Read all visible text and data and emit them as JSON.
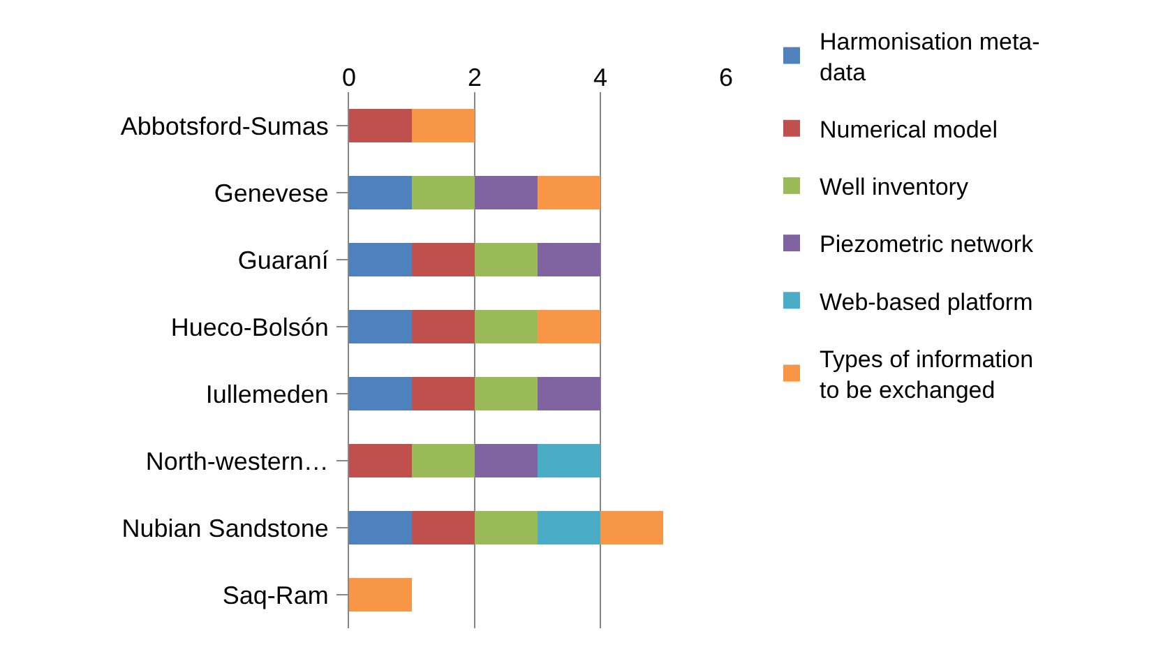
{
  "chart_data": {
    "type": "bar",
    "orientation": "horizontal",
    "stacked": true,
    "categories": [
      "Abbotsford-Sumas",
      "Genevese",
      "Guaraní",
      "Hueco-Bolsón",
      "Iullemeden",
      "North-western…",
      "Nubian Sandstone",
      "Saq-Ram"
    ],
    "series": [
      {
        "name": "Harmonisation meta-data",
        "color": "#4f81bd",
        "values": [
          0,
          1,
          1,
          1,
          1,
          0,
          1,
          0
        ]
      },
      {
        "name": "Numerical model",
        "color": "#c0504d",
        "values": [
          1,
          0,
          1,
          1,
          1,
          1,
          1,
          0
        ]
      },
      {
        "name": "Well inventory",
        "color": "#9bbb59",
        "values": [
          0,
          1,
          1,
          1,
          1,
          1,
          1,
          0
        ]
      },
      {
        "name": "Piezometric network",
        "color": "#8064a2",
        "values": [
          0,
          1,
          1,
          0,
          1,
          1,
          0,
          0
        ]
      },
      {
        "name": "Web-based platform",
        "color": "#4bacc6",
        "values": [
          0,
          0,
          0,
          0,
          0,
          1,
          1,
          0
        ]
      },
      {
        "name": "Types of information to be exchanged",
        "color": "#f79646",
        "values": [
          1,
          1,
          0,
          1,
          0,
          0,
          1,
          1
        ]
      }
    ],
    "xlim": [
      0,
      6
    ],
    "xticks": [
      0,
      2,
      4,
      6
    ],
    "grid": "x",
    "legend": "right"
  }
}
